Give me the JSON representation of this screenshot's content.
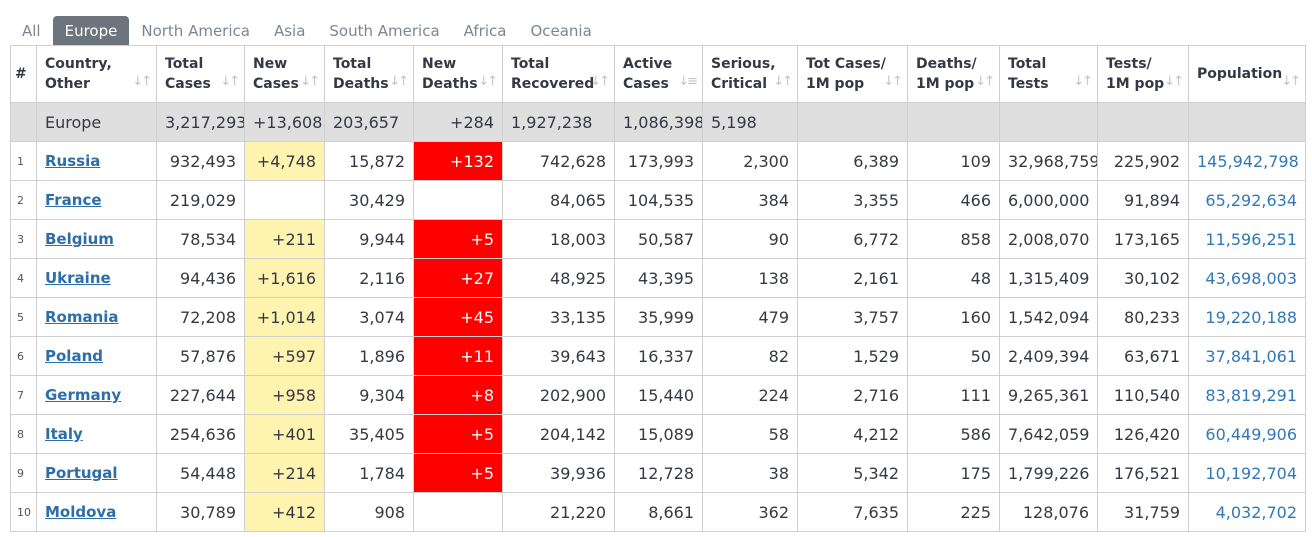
{
  "tabs": [
    {
      "label": "All",
      "active": false
    },
    {
      "label": "Europe",
      "active": true
    },
    {
      "label": "North America",
      "active": false
    },
    {
      "label": "Asia",
      "active": false
    },
    {
      "label": "South America",
      "active": false
    },
    {
      "label": "Africa",
      "active": false
    },
    {
      "label": "Oceania",
      "active": false
    }
  ],
  "headers": [
    "#",
    "Country,\nOther",
    "Total\nCases",
    "New\nCases",
    "Total\nDeaths",
    "New\nDeaths",
    "Total\nRecovered",
    "Active\nCases",
    "Serious,\nCritical",
    "Tot Cases/\n1M pop",
    "Deaths/\n1M pop",
    "Total\nTests",
    "Tests/\n1M pop",
    "Population"
  ],
  "sort_icons": [
    "",
    "↓↑",
    "↓↑",
    "↓↑",
    "↓↑",
    "↓↑",
    "↓↑",
    "↓≡",
    "↓↑",
    "↓↑",
    "↓↑",
    "↓↑",
    "↓↑",
    "↓↑"
  ],
  "colors": {
    "tab_active": "#6c757d",
    "new_cases_bg": "#fff3b0",
    "new_deaths_bg": "#ff0000",
    "link": "#2d6ea8",
    "total_row_bg": "#dfdfdf"
  },
  "total_row": {
    "country": "Europe",
    "total_cases": "3,217,293",
    "new_cases": "+13,608",
    "total_deaths": "203,657",
    "new_deaths": "+284",
    "total_recovered": "1,927,238",
    "active_cases": "1,086,398",
    "serious": "5,198"
  },
  "rows": [
    {
      "num": "1",
      "country": "Russia",
      "total_cases": "932,493",
      "new_cases": "+4,748",
      "total_deaths": "15,872",
      "new_deaths": "+132",
      "total_recovered": "742,628",
      "active_cases": "173,993",
      "serious": "2,300",
      "cases_per_1m": "6,389",
      "deaths_per_1m": "109",
      "total_tests": "32,968,759",
      "tests_per_1m": "225,902",
      "population": "145,942,798"
    },
    {
      "num": "2",
      "country": "France",
      "total_cases": "219,029",
      "new_cases": "",
      "total_deaths": "30,429",
      "new_deaths": "",
      "total_recovered": "84,065",
      "active_cases": "104,535",
      "serious": "384",
      "cases_per_1m": "3,355",
      "deaths_per_1m": "466",
      "total_tests": "6,000,000",
      "tests_per_1m": "91,894",
      "population": "65,292,634"
    },
    {
      "num": "3",
      "country": "Belgium",
      "total_cases": "78,534",
      "new_cases": "+211",
      "total_deaths": "9,944",
      "new_deaths": "+5",
      "total_recovered": "18,003",
      "active_cases": "50,587",
      "serious": "90",
      "cases_per_1m": "6,772",
      "deaths_per_1m": "858",
      "total_tests": "2,008,070",
      "tests_per_1m": "173,165",
      "population": "11,596,251"
    },
    {
      "num": "4",
      "country": "Ukraine",
      "total_cases": "94,436",
      "new_cases": "+1,616",
      "total_deaths": "2,116",
      "new_deaths": "+27",
      "total_recovered": "48,925",
      "active_cases": "43,395",
      "serious": "138",
      "cases_per_1m": "2,161",
      "deaths_per_1m": "48",
      "total_tests": "1,315,409",
      "tests_per_1m": "30,102",
      "population": "43,698,003"
    },
    {
      "num": "5",
      "country": "Romania",
      "total_cases": "72,208",
      "new_cases": "+1,014",
      "total_deaths": "3,074",
      "new_deaths": "+45",
      "total_recovered": "33,135",
      "active_cases": "35,999",
      "serious": "479",
      "cases_per_1m": "3,757",
      "deaths_per_1m": "160",
      "total_tests": "1,542,094",
      "tests_per_1m": "80,233",
      "population": "19,220,188"
    },
    {
      "num": "6",
      "country": "Poland",
      "total_cases": "57,876",
      "new_cases": "+597",
      "total_deaths": "1,896",
      "new_deaths": "+11",
      "total_recovered": "39,643",
      "active_cases": "16,337",
      "serious": "82",
      "cases_per_1m": "1,529",
      "deaths_per_1m": "50",
      "total_tests": "2,409,394",
      "tests_per_1m": "63,671",
      "population": "37,841,061"
    },
    {
      "num": "7",
      "country": "Germany",
      "total_cases": "227,644",
      "new_cases": "+958",
      "total_deaths": "9,304",
      "new_deaths": "+8",
      "total_recovered": "202,900",
      "active_cases": "15,440",
      "serious": "224",
      "cases_per_1m": "2,716",
      "deaths_per_1m": "111",
      "total_tests": "9,265,361",
      "tests_per_1m": "110,540",
      "population": "83,819,291"
    },
    {
      "num": "8",
      "country": "Italy",
      "total_cases": "254,636",
      "new_cases": "+401",
      "total_deaths": "35,405",
      "new_deaths": "+5",
      "total_recovered": "204,142",
      "active_cases": "15,089",
      "serious": "58",
      "cases_per_1m": "4,212",
      "deaths_per_1m": "586",
      "total_tests": "7,642,059",
      "tests_per_1m": "126,420",
      "population": "60,449,906"
    },
    {
      "num": "9",
      "country": "Portugal",
      "total_cases": "54,448",
      "new_cases": "+214",
      "total_deaths": "1,784",
      "new_deaths": "+5",
      "total_recovered": "39,936",
      "active_cases": "12,728",
      "serious": "38",
      "cases_per_1m": "5,342",
      "deaths_per_1m": "175",
      "total_tests": "1,799,226",
      "tests_per_1m": "176,521",
      "population": "10,192,704"
    },
    {
      "num": "10",
      "country": "Moldova",
      "total_cases": "30,789",
      "new_cases": "+412",
      "total_deaths": "908",
      "new_deaths": "",
      "total_recovered": "21,220",
      "active_cases": "8,661",
      "serious": "362",
      "cases_per_1m": "7,635",
      "deaths_per_1m": "225",
      "total_tests": "128,076",
      "tests_per_1m": "31,759",
      "population": "4,032,702"
    }
  ]
}
